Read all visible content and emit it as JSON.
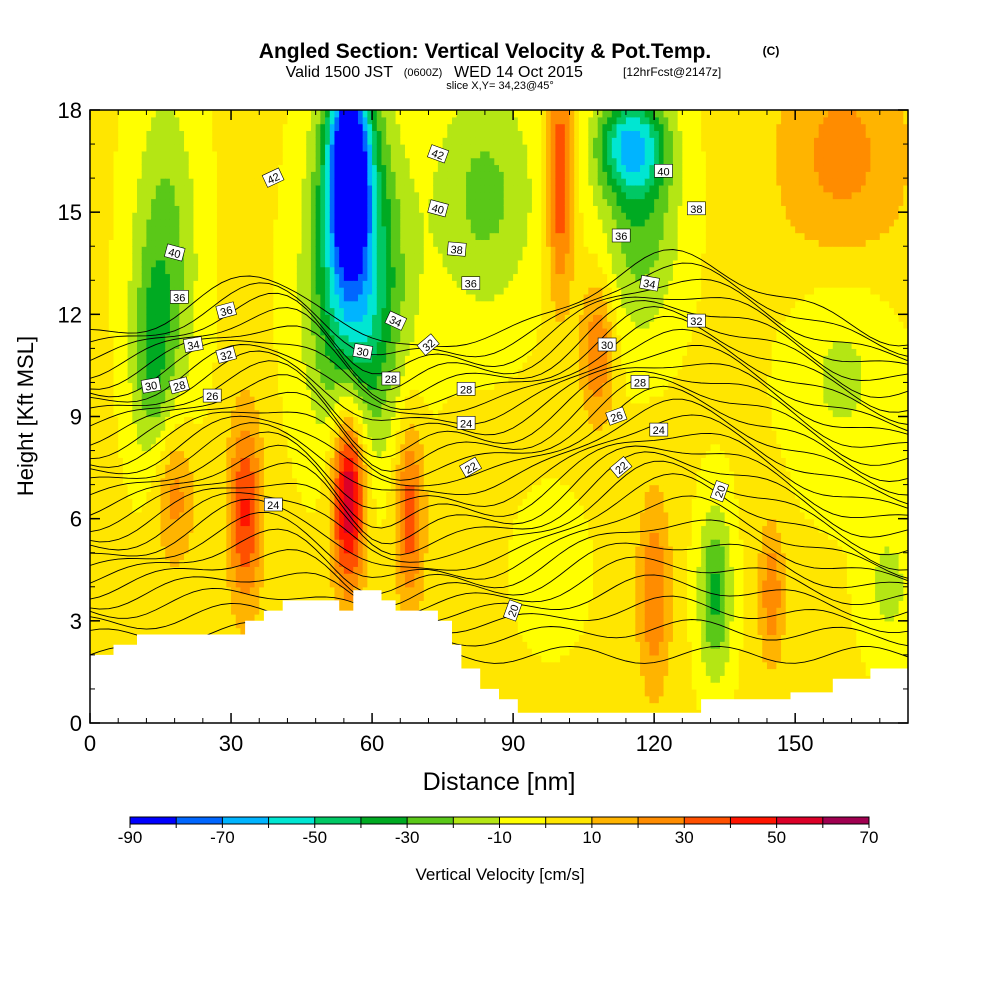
{
  "chart_data": {
    "type": "heatmap",
    "title": "Angled Section: Vertical Velocity & Pot.Temp.",
    "title_unit": "(C)",
    "subtitle": {
      "prefix": "Valid 1500 JST",
      "utc": "(0600Z)",
      "date": "WED 14 Oct 2015",
      "forecast": "[12hrFcst@2147z]"
    },
    "slice_label": "slice X,Y= 34,23@45°",
    "xlabel": "Distance [nm]",
    "ylabel": "Height [Kft MSL]",
    "xlim": [
      0,
      174
    ],
    "ylim": [
      0,
      18
    ],
    "x_ticks": [
      0,
      30,
      60,
      90,
      120,
      150
    ],
    "y_ticks": [
      0,
      3,
      6,
      9,
      12,
      15,
      18
    ],
    "colorbar": {
      "label": "Vertical Velocity [cm/s]",
      "tick_labels": [
        -90,
        -70,
        -50,
        -30,
        -10,
        10,
        30,
        50,
        70
      ],
      "boundaries": [
        -90,
        -80,
        -70,
        -60,
        -50,
        -40,
        -30,
        -20,
        -10,
        0,
        10,
        20,
        30,
        40,
        50,
        60,
        70
      ],
      "colors": [
        "#0000ff",
        "#0066ff",
        "#00b4ff",
        "#00e6d2",
        "#00c864",
        "#00aa22",
        "#5ac818",
        "#b4e614",
        "#ffff00",
        "#ffe600",
        "#ffb400",
        "#ff8c00",
        "#ff5000",
        "#ff1400",
        "#dc0028",
        "#a00050",
        "#640096"
      ]
    },
    "terrain_kft": [
      [
        0,
        2.0
      ],
      [
        5,
        2.3
      ],
      [
        10,
        2.6
      ],
      [
        20,
        2.6
      ],
      [
        30,
        2.6
      ],
      [
        33,
        3.0
      ],
      [
        37,
        3.3
      ],
      [
        41,
        3.6
      ],
      [
        50,
        3.6
      ],
      [
        53,
        3.3
      ],
      [
        56,
        3.9
      ],
      [
        62,
        3.6
      ],
      [
        65,
        3.3
      ],
      [
        72,
        3.3
      ],
      [
        74,
        3.0
      ],
      [
        77,
        2.3
      ],
      [
        79,
        1.6
      ],
      [
        83,
        1.0
      ],
      [
        87,
        0.7
      ],
      [
        91,
        0.3
      ],
      [
        110,
        0.3
      ],
      [
        129,
        0.3
      ],
      [
        130,
        0.7
      ],
      [
        145,
        0.7
      ],
      [
        149,
        0.9
      ],
      [
        158,
        1.3
      ],
      [
        166,
        1.6
      ],
      [
        174,
        1.6
      ]
    ],
    "velocity_cells": [
      {
        "x": 16,
        "z": 13.5,
        "w": -28,
        "sx": 5,
        "sz": 3.5
      },
      {
        "x": 13,
        "z": 10.5,
        "w": -20,
        "sx": 3,
        "sz": 2.0
      },
      {
        "x": 55,
        "z": 16.5,
        "w": -85,
        "sx": 3,
        "sz": 2.0
      },
      {
        "x": 56,
        "z": 14.0,
        "w": -50,
        "sx": 6,
        "sz": 3.5
      },
      {
        "x": 58,
        "z": 12.0,
        "w": -20,
        "sx": 8,
        "sz": 3.0
      },
      {
        "x": 84,
        "z": 15.5,
        "w": -25,
        "sx": 8,
        "sz": 2.5
      },
      {
        "x": 115,
        "z": 17.0,
        "w": -50,
        "sx": 5,
        "sz": 1.0
      },
      {
        "x": 117,
        "z": 15.0,
        "w": -30,
        "sx": 6,
        "sz": 2.5
      },
      {
        "x": 160,
        "z": 10.5,
        "w": -15,
        "sx": 8,
        "sz": 2.5
      },
      {
        "x": 100,
        "z": 16.0,
        "w": 40,
        "sx": 2,
        "sz": 2.5
      },
      {
        "x": 108,
        "z": 11.0,
        "w": 30,
        "sx": 2.5,
        "sz": 1.5
      },
      {
        "x": 55,
        "z": 6.8,
        "w": 65,
        "sx": 2.5,
        "sz": 2.0
      },
      {
        "x": 33,
        "z": 6.2,
        "w": 40,
        "sx": 2.5,
        "sz": 2.0
      },
      {
        "x": 68,
        "z": 6.2,
        "w": 35,
        "sx": 2.2,
        "sz": 2.0
      },
      {
        "x": 18,
        "z": 6.8,
        "w": 25,
        "sx": 3,
        "sz": 1.5
      },
      {
        "x": 133,
        "z": 3.8,
        "w": -35,
        "sx": 2.5,
        "sz": 1.8
      },
      {
        "x": 120,
        "z": 3.8,
        "w": 28,
        "sx": 2.5,
        "sz": 2.0
      },
      {
        "x": 98,
        "z": 4.5,
        "w": -10,
        "sx": 5,
        "sz": 1.5
      },
      {
        "x": 170,
        "z": 4.0,
        "w": -15,
        "sx": 4,
        "sz": 1.5
      },
      {
        "x": 145,
        "z": 3.8,
        "w": 25,
        "sx": 2,
        "sz": 1.5
      },
      {
        "x": 160,
        "z": 16.5,
        "w": 22,
        "sx": 10,
        "sz": 2.5
      }
    ],
    "theta_labels": [
      {
        "text": "42",
        "x": 39,
        "z": 16.0,
        "rot": -25
      },
      {
        "text": "42",
        "x": 74,
        "z": 16.7,
        "rot": 20
      },
      {
        "text": "40",
        "x": 74,
        "z": 15.1,
        "rot": 15
      },
      {
        "text": "40",
        "x": 18,
        "z": 13.8,
        "rot": 15
      },
      {
        "text": "40",
        "x": 122,
        "z": 16.2,
        "rot": 0
      },
      {
        "text": "38",
        "x": 78,
        "z": 13.9,
        "rot": 5
      },
      {
        "text": "38",
        "x": 129,
        "z": 15.1,
        "rot": 0
      },
      {
        "text": "36",
        "x": 19,
        "z": 12.5,
        "rot": 0
      },
      {
        "text": "36",
        "x": 29,
        "z": 12.1,
        "rot": -15
      },
      {
        "text": "36",
        "x": 81,
        "z": 12.9,
        "rot": 0
      },
      {
        "text": "36",
        "x": 113,
        "z": 14.3,
        "rot": 0
      },
      {
        "text": "34",
        "x": 22,
        "z": 11.1,
        "rot": -10
      },
      {
        "text": "34",
        "x": 65,
        "z": 11.8,
        "rot": 25
      },
      {
        "text": "34",
        "x": 119,
        "z": 12.9,
        "rot": 10
      },
      {
        "text": "32",
        "x": 29,
        "z": 10.8,
        "rot": -15
      },
      {
        "text": "32",
        "x": 72,
        "z": 11.1,
        "rot": -40
      },
      {
        "text": "32",
        "x": 129,
        "z": 11.8,
        "rot": 0
      },
      {
        "text": "30",
        "x": 13,
        "z": 9.9,
        "rot": -10
      },
      {
        "text": "30",
        "x": 58,
        "z": 10.9,
        "rot": 10
      },
      {
        "text": "30",
        "x": 110,
        "z": 11.1,
        "rot": 0
      },
      {
        "text": "28",
        "x": 19,
        "z": 9.9,
        "rot": -15
      },
      {
        "text": "28",
        "x": 64,
        "z": 10.1,
        "rot": 0
      },
      {
        "text": "28",
        "x": 80,
        "z": 9.8,
        "rot": 0
      },
      {
        "text": "28",
        "x": 117,
        "z": 10.0,
        "rot": 0
      },
      {
        "text": "26",
        "x": 26,
        "z": 9.6,
        "rot": 0
      },
      {
        "text": "26",
        "x": 112,
        "z": 9.0,
        "rot": -20
      },
      {
        "text": "24",
        "x": 80,
        "z": 8.8,
        "rot": 0
      },
      {
        "text": "24",
        "x": 121,
        "z": 8.6,
        "rot": 0
      },
      {
        "text": "24",
        "x": 39,
        "z": 6.4,
        "rot": 0
      },
      {
        "text": "22",
        "x": 81,
        "z": 7.5,
        "rot": -30
      },
      {
        "text": "22",
        "x": 113,
        "z": 7.5,
        "rot": -40
      },
      {
        "text": "20",
        "x": 90,
        "z": 3.3,
        "rot": -70
      },
      {
        "text": "20",
        "x": 134,
        "z": 6.8,
        "rot": -70
      }
    ]
  }
}
